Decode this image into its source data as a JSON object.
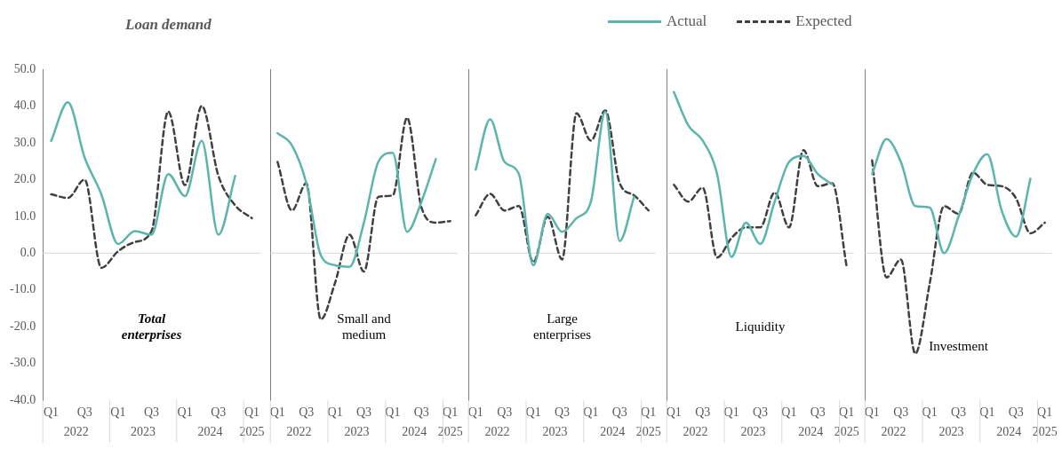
{
  "chart_data": [
    {
      "type": "line",
      "title": "Loan demand",
      "subtitle": "Total enterprises",
      "categories": [
        "Q1",
        null,
        "Q3",
        null,
        "Q1",
        null,
        "Q3",
        null,
        "Q1",
        null,
        "Q3",
        null,
        "Q1"
      ],
      "ylim": [
        -40,
        50
      ],
      "yticks": [
        {
          "value": -40,
          "label": "-40.0"
        },
        {
          "value": -30,
          "label": "-30.0"
        },
        {
          "value": -20,
          "label": "-20.0"
        },
        {
          "value": -10,
          "label": "-10.0"
        },
        {
          "value": 0,
          "label": "0.0"
        },
        {
          "value": 10,
          "label": "10.0"
        },
        {
          "value": 20,
          "label": "20.0"
        },
        {
          "value": 30,
          "label": "30.0"
        },
        {
          "value": 40,
          "label": "40.0"
        },
        {
          "value": 50,
          "label": "50.0"
        }
      ],
      "legend": "top right",
      "marker": "none",
      "grid": false,
      "ref_lines": [
        {
          "axis": "y",
          "value": 0,
          "color": "#d9d9d9"
        }
      ],
      "annotations": [
        "2022",
        "2023",
        "2024",
        "2025"
      ],
      "series": [
        {
          "name": "Actual",
          "color": "#5bb5ac",
          "line_style": "solid",
          "values": [
            30.5,
            41,
            26,
            16,
            2.5,
            6,
            5,
            21.5,
            15.5,
            30.5,
            5,
            21,
            null
          ]
        },
        {
          "name": "Expected",
          "color": "#404040",
          "line_style": "dashed",
          "values": [
            16,
            15,
            20,
            -4,
            0.5,
            3,
            6,
            38.5,
            18.5,
            40,
            21,
            13,
            9.5
          ]
        }
      ]
    },
    {
      "type": "line",
      "subtitle": "Small and medium",
      "categories": [
        "Q1",
        null,
        "Q3",
        null,
        "Q1",
        null,
        "Q3",
        null,
        "Q1",
        null,
        "Q3",
        null,
        "Q1"
      ],
      "ylim": [
        -40,
        50
      ],
      "tick_labels": "x",
      "marker": "none",
      "grid": false,
      "ref_lines": [
        {
          "axis": "y",
          "value": 0,
          "color": "#d9d9d9"
        }
      ],
      "annotations": [
        "2022",
        "2023",
        "2024",
        "2025"
      ],
      "series": [
        {
          "color": "#5bb5ac",
          "line_style": "solid",
          "values": [
            32.6,
            29.3,
            19,
            -0.5,
            -3.3,
            -3.7,
            8.3,
            24.8,
            27.3,
            5.8,
            14,
            25.6,
            null
          ]
        },
        {
          "color": "#404040",
          "line_style": "dashed",
          "values": [
            24.8,
            11.6,
            19,
            -18,
            -8,
            5,
            -5,
            15.3,
            15.7,
            36.8,
            12.4,
            8.3,
            8.7
          ]
        }
      ]
    },
    {
      "type": "line",
      "subtitle": "Large enterprises",
      "categories": [
        "Q1",
        null,
        "Q3",
        null,
        "Q1",
        null,
        "Q3",
        null,
        "Q1",
        null,
        "Q3",
        null,
        "Q1"
      ],
      "ylim": [
        -40,
        50
      ],
      "tick_labels": "x",
      "marker": "none",
      "grid": false,
      "ref_lines": [
        {
          "axis": "y",
          "value": 0,
          "color": "#d9d9d9"
        }
      ],
      "annotations": [
        "2022",
        "2023",
        "2024",
        "2025"
      ],
      "series": [
        {
          "color": "#5bb5ac",
          "line_style": "solid",
          "values": [
            22.7,
            36.4,
            24.8,
            21.5,
            -3.3,
            10.7,
            5.8,
            9.5,
            14,
            38.4,
            3.3,
            15.3,
            null
          ]
        },
        {
          "color": "#404040",
          "line_style": "dashed",
          "values": [
            10.3,
            16.1,
            11.6,
            12.8,
            -2.5,
            9.9,
            -1.7,
            38,
            30.6,
            38.8,
            19,
            15.7,
            11.6
          ]
        }
      ]
    },
    {
      "type": "line",
      "subtitle": "Liquidity",
      "categories": [
        "Q1",
        null,
        "Q3",
        null,
        "Q1",
        null,
        "Q3",
        null,
        "Q1",
        null,
        "Q3",
        null,
        "Q1"
      ],
      "ylim": [
        -40,
        50
      ],
      "tick_labels": "x",
      "marker": "none",
      "grid": false,
      "ref_lines": [
        {
          "axis": "y",
          "value": 0,
          "color": "#d9d9d9"
        }
      ],
      "annotations": [
        "2022",
        "2023",
        "2024",
        "2025"
      ],
      "series": [
        {
          "color": "#5bb5ac",
          "line_style": "solid",
          "values": [
            43.8,
            34.7,
            30.6,
            21.5,
            -1,
            8.3,
            2.5,
            14,
            24.8,
            26.4,
            21.5,
            18.7,
            null
          ]
        },
        {
          "color": "#404040",
          "line_style": "dashed",
          "values": [
            18.6,
            14,
            17.8,
            -1.2,
            4.1,
            7,
            7,
            16.5,
            7,
            28,
            18.2,
            19,
            -3.7
          ]
        }
      ]
    },
    {
      "type": "line",
      "subtitle": "Investment",
      "categories": [
        "Q1",
        null,
        "Q3",
        null,
        "Q1",
        null,
        "Q3",
        null,
        "Q1",
        null,
        "Q3",
        null,
        "Q1"
      ],
      "ylim": [
        -40,
        50
      ],
      "tick_labels": "x",
      "marker": "none",
      "grid": false,
      "ref_lines": [
        {
          "axis": "y",
          "value": 0,
          "color": "#d9d9d9"
        }
      ],
      "annotations": [
        "2022",
        "2023",
        "2024",
        "2025"
      ],
      "series": [
        {
          "color": "#5bb5ac",
          "line_style": "solid",
          "values": [
            21.5,
            31,
            24.8,
            12.8,
            12.4,
            0,
            9.9,
            21.5,
            26.9,
            11.6,
            4.5,
            20.2,
            null
          ]
        },
        {
          "color": "#404040",
          "line_style": "dashed",
          "values": [
            25.2,
            -6.6,
            -1.7,
            -27.3,
            -8.3,
            12.8,
            10.7,
            21.9,
            18.6,
            18.2,
            14.9,
            5.4,
            8.3
          ]
        }
      ]
    }
  ]
}
